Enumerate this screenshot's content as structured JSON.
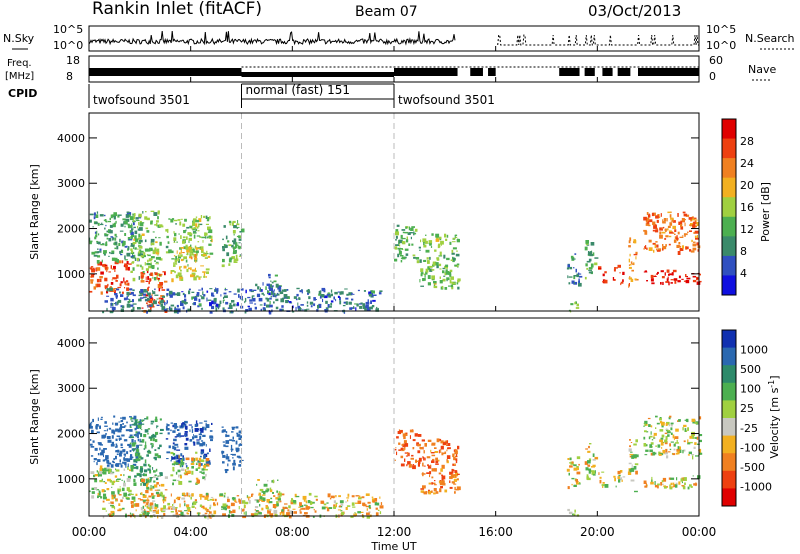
{
  "header": {
    "station": "Rankin Inlet (fitACF)",
    "beam": "Beam 07",
    "date": "03/Oct/2013"
  },
  "panels": {
    "nsky_label": "N.Sky",
    "nsearch_label": "N.Search",
    "freq_label_1": "Freq.",
    "freq_label_2": "[MHz]",
    "nave_label": "Nave",
    "cpid_label": "CPID",
    "left_ticks_top": [
      "10^5",
      "10^0"
    ],
    "right_ticks_top": [
      "10^5",
      "10^0"
    ],
    "freq_ticks": [
      "18",
      "8"
    ],
    "nave_ticks": [
      "60",
      "0"
    ]
  },
  "cpid_segments": [
    {
      "label": "twofsound 3501",
      "start": 0,
      "end": 6
    },
    {
      "label": "normal (fast) 151",
      "start": 6,
      "end": 12
    },
    {
      "label": "twofsound 3501",
      "start": 12,
      "end": 24
    }
  ],
  "axes": {
    "ylabel": "Slant Range [km]",
    "xlabel": "Time UT",
    "y_ticks": [
      "1000",
      "2000",
      "3000",
      "4000"
    ],
    "x_ticks": [
      "00:00",
      "04:00",
      "08:00",
      "12:00",
      "16:00",
      "20:00",
      "00:00"
    ]
  },
  "power_colorbar": {
    "label": "Power [dB]",
    "ticks": [
      "4",
      "8",
      "12",
      "16",
      "20",
      "24",
      "28"
    ],
    "colors": [
      "#1010e0",
      "#3050c0",
      "#3a8a6a",
      "#4caf50",
      "#a0d040",
      "#f2b020",
      "#f08020",
      "#ee4010",
      "#e00000"
    ]
  },
  "velocity_colorbar": {
    "label": "Velocity [m s-1]",
    "ticks": [
      "1000",
      "500",
      "100",
      "25",
      "-25",
      "-100",
      "-500",
      "-1000"
    ],
    "colors": [
      "#1030b0",
      "#2a68b0",
      "#2d8a6a",
      "#4caf50",
      "#a0d040",
      "#c8c8c0",
      "#f2b020",
      "#f08020",
      "#ee4010",
      "#e00000"
    ]
  },
  "chart_data": {
    "type": "heatmap",
    "title": "Rankin Inlet (fitACF)",
    "xlabel": "Time UT",
    "ylabel": "Slant Range [km]",
    "xlim": [
      0,
      24
    ],
    "ylim": [
      180,
      4550
    ],
    "power_series_name": "Power [dB]",
    "velocity_series_name": "Velocity [m s-1]",
    "echo_regions": [
      {
        "t0": 0.0,
        "t1": 1.6,
        "r0": 600,
        "r1": 1300,
        "power": 26,
        "velocity": 100
      },
      {
        "t0": 0.0,
        "t1": 2.0,
        "r0": 1300,
        "r1": 2400,
        "power": 10,
        "velocity": 700
      },
      {
        "t0": 1.6,
        "t1": 2.8,
        "r0": 900,
        "r1": 2400,
        "power": 14,
        "velocity": 300
      },
      {
        "t0": 2.0,
        "t1": 3.0,
        "r0": 180,
        "r1": 1100,
        "power": 27,
        "velocity": 60
      },
      {
        "t0": 3.0,
        "t1": 4.8,
        "r0": 1300,
        "r1": 2300,
        "power": 14,
        "velocity": 900
      },
      {
        "t0": 3.2,
        "t1": 4.6,
        "r0": 900,
        "r1": 1600,
        "power": 18,
        "velocity": 60
      },
      {
        "t0": 5.2,
        "t1": 6.0,
        "r0": 1200,
        "r1": 2200,
        "power": 12,
        "velocity": 800
      },
      {
        "t0": 0.5,
        "t1": 11.5,
        "r0": 180,
        "r1": 700,
        "power": 7,
        "velocity": -40
      },
      {
        "t0": 6.5,
        "t1": 7.5,
        "r0": 500,
        "r1": 1000,
        "power": 8,
        "velocity": 60
      },
      {
        "t0": 12.0,
        "t1": 13.0,
        "r0": 1300,
        "r1": 2100,
        "power": 12,
        "velocity": -300
      },
      {
        "t0": 13.0,
        "t1": 14.5,
        "r0": 700,
        "r1": 1900,
        "power": 14,
        "velocity": -250
      },
      {
        "t0": 18.8,
        "t1": 19.3,
        "r0": 800,
        "r1": 1500,
        "power": 8,
        "velocity": -30
      },
      {
        "t0": 18.8,
        "t1": 19.3,
        "r0": 180,
        "r1": 400,
        "power": 14,
        "velocity": 60
      },
      {
        "t0": 19.5,
        "t1": 19.9,
        "r0": 900,
        "r1": 1800,
        "power": 12,
        "velocity": -30
      },
      {
        "t0": 20.0,
        "t1": 20.3,
        "r0": 800,
        "r1": 1200,
        "power": 28,
        "velocity": 0
      },
      {
        "t0": 20.6,
        "t1": 21.0,
        "r0": 800,
        "r1": 1200,
        "power": 28,
        "velocity": 0
      },
      {
        "t0": 21.2,
        "t1": 21.5,
        "r0": 700,
        "r1": 1900,
        "power": 22,
        "velocity": 0
      },
      {
        "t0": 21.8,
        "t1": 24.0,
        "r0": 800,
        "r1": 1100,
        "power": 30,
        "velocity": 0
      },
      {
        "t0": 21.8,
        "t1": 24.0,
        "r0": 1500,
        "r1": 2400,
        "power": 24,
        "velocity": 60
      }
    ]
  }
}
